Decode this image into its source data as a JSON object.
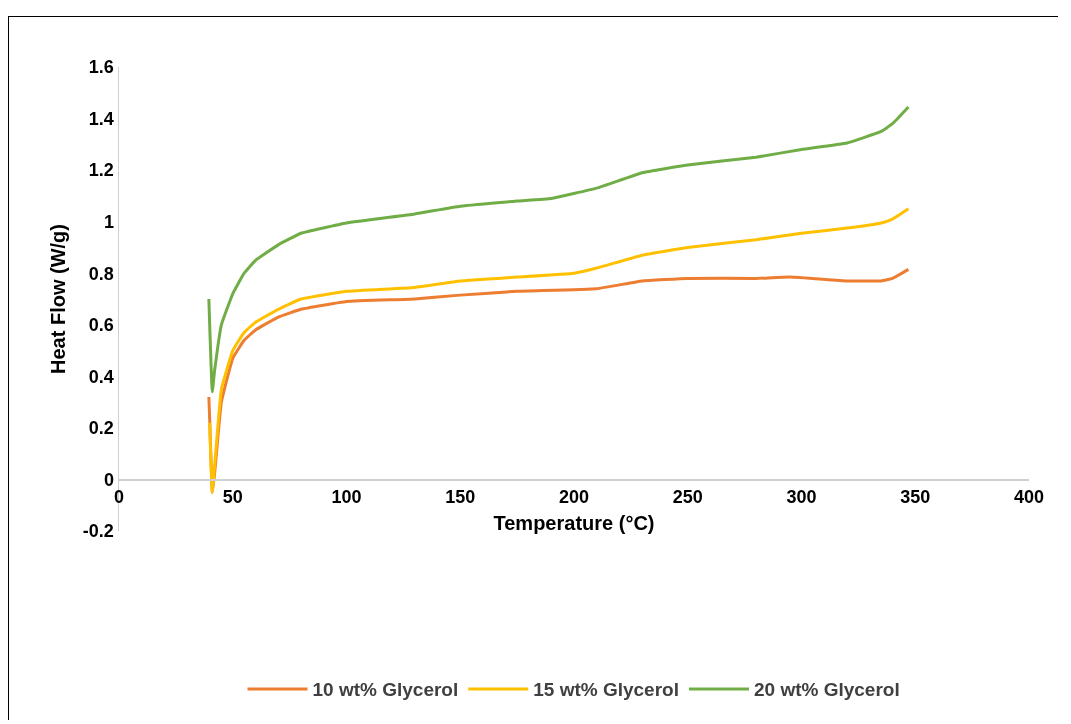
{
  "chart_data": {
    "type": "line",
    "xlabel": "Temperature (°C)",
    "ylabel": "Heat Flow (W/g)",
    "xlim": [
      0,
      400
    ],
    "xticks": [
      0,
      50,
      100,
      150,
      200,
      250,
      300,
      350,
      400
    ],
    "ylim": [
      -0.2,
      1.6
    ],
    "yticks": [
      -0.2,
      0,
      0.2,
      0.4,
      0.6,
      0.8,
      1,
      1.2,
      1.4,
      1.6
    ],
    "grid": false,
    "legend": "bottom",
    "marker": "none",
    "line_style": "solid",
    "series": [
      {
        "name": "10 wt% Glycerol",
        "color": "#ed7d31",
        "x": [
          39.5,
          40,
          41,
          42,
          45,
          50,
          55,
          60,
          70,
          80,
          100,
          130,
          150,
          175,
          210,
          230,
          250,
          280,
          295,
          320,
          335,
          340,
          347
        ],
        "values": [
          0.32,
          0.2,
          -0.05,
          0.02,
          0.3,
          0.47,
          0.54,
          0.58,
          0.63,
          0.66,
          0.69,
          0.7,
          0.715,
          0.73,
          0.74,
          0.77,
          0.78,
          0.78,
          0.785,
          0.77,
          0.77,
          0.78,
          0.815
        ]
      },
      {
        "name": "15 wt% Glycerol",
        "color": "#ffc000",
        "x": [
          39.8,
          41,
          42,
          45,
          50,
          55,
          60,
          70,
          80,
          100,
          130,
          150,
          175,
          200,
          210,
          230,
          250,
          280,
          300,
          320,
          335,
          340,
          347
        ],
        "values": [
          0.22,
          -0.05,
          0.05,
          0.35,
          0.5,
          0.57,
          0.61,
          0.66,
          0.7,
          0.73,
          0.745,
          0.77,
          0.785,
          0.8,
          0.82,
          0.87,
          0.9,
          0.93,
          0.955,
          0.975,
          0.995,
          1.01,
          1.05
        ]
      },
      {
        "name": "20 wt% Glycerol",
        "color": "#70ad47",
        "x": [
          39.5,
          41,
          42,
          45,
          50,
          55,
          60,
          70,
          80,
          100,
          130,
          150,
          175,
          190,
          210,
          230,
          250,
          280,
          300,
          320,
          335,
          340,
          347
        ],
        "values": [
          0.7,
          0.34,
          0.42,
          0.6,
          0.72,
          0.8,
          0.85,
          0.91,
          0.955,
          0.995,
          1.03,
          1.06,
          1.08,
          1.09,
          1.13,
          1.19,
          1.22,
          1.25,
          1.28,
          1.305,
          1.35,
          1.38,
          1.445
        ]
      }
    ]
  }
}
